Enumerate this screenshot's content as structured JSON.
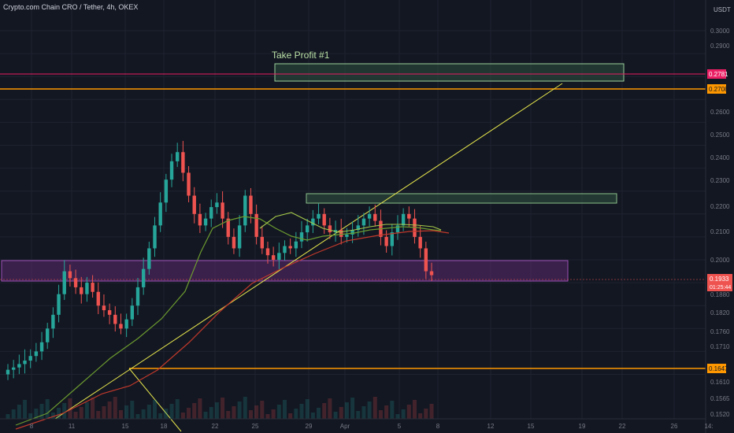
{
  "header": {
    "title": "Crypto.com Chain CRO / Tether, 4h, OKEX"
  },
  "price_axis": {
    "currency": "USDT",
    "ticks": [
      "0.3000",
      "0.2900",
      "0.2781",
      "0.2708",
      "0.2600",
      "0.2500",
      "0.2400",
      "0.2300",
      "0.2200",
      "0.2100",
      "0.2000",
      "0.1933",
      "01:25:44",
      "0.1880",
      "0.1820",
      "0.1760",
      "0.1710",
      "0.1647",
      "0.1610",
      "0.1565",
      "0.1520"
    ],
    "last_price": "0.1933",
    "countdown": "01:25:44",
    "level_upper": "0.2781",
    "level_mid": "0.2708",
    "level_low": "0.1647"
  },
  "time_axis": {
    "ticks": [
      "8",
      "11",
      "15",
      "18",
      "22",
      "25",
      "29",
      "Apr",
      "5",
      "8",
      "12",
      "15",
      "19",
      "22",
      "26",
      "14:"
    ]
  },
  "annotation": {
    "take_profit_label": "Take Profit #1"
  },
  "colors": {
    "background": "#131722",
    "grid": "#1f2330",
    "bull": "#26a69a",
    "bear": "#ef5350",
    "orange_line": "#ff9800",
    "pink_line": "#e91e63",
    "trendline": "#e6e64c",
    "ma_green": "#6b9a2f",
    "ma_red": "#c0392b",
    "tp_zone": "#2e4f3e",
    "support_zone": "#5b2a6e"
  },
  "chart_data": {
    "type": "candlestick",
    "title": "Crypto.com Chain CRO / Tether, 4h, OKEX",
    "ylabel": "USDT",
    "price_levels": [
      0.2781,
      0.2708,
      0.1647
    ],
    "zones": [
      {
        "label": "Take Profit #1",
        "from": 0.277,
        "to": 0.283
      },
      {
        "label": "",
        "from": 0.221,
        "to": 0.224
      },
      {
        "label": "",
        "from": 0.193,
        "to": 0.199
      }
    ],
    "close": [
      0.152,
      0.153,
      0.1545,
      0.156,
      0.158,
      0.16,
      0.164,
      0.17,
      0.176,
      0.185,
      0.195,
      0.192,
      0.188,
      0.185,
      0.19,
      0.186,
      0.18,
      0.178,
      0.176,
      0.172,
      0.17,
      0.174,
      0.18,
      0.188,
      0.196,
      0.205,
      0.215,
      0.225,
      0.235,
      0.243,
      0.247,
      0.238,
      0.228,
      0.22,
      0.215,
      0.218,
      0.223,
      0.225,
      0.218,
      0.21,
      0.205,
      0.215,
      0.228,
      0.22,
      0.21,
      0.205,
      0.202,
      0.2,
      0.203,
      0.206,
      0.205,
      0.208,
      0.212,
      0.215,
      0.218,
      0.22,
      0.215,
      0.212,
      0.213,
      0.21,
      0.211,
      0.213,
      0.215,
      0.218,
      0.22,
      0.217,
      0.21,
      0.206,
      0.212,
      0.215,
      0.22,
      0.218,
      0.21,
      0.205,
      0.195,
      0.1933
    ],
    "moving_averages": [
      "green",
      "red"
    ]
  }
}
